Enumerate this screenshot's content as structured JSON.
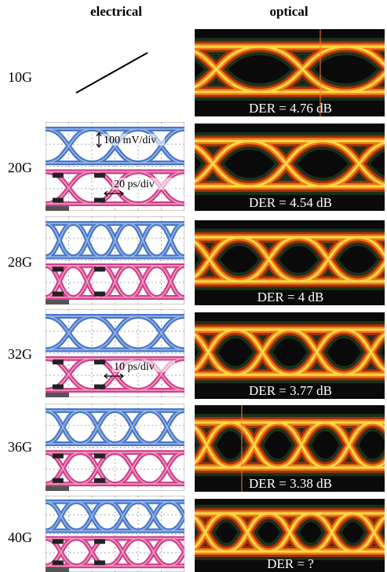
{
  "header": {
    "electrical": "electrical",
    "optical": "optical"
  },
  "rows": [
    {
      "rate": "10G",
      "der": "DER = 4.76 dB"
    },
    {
      "rate": "20G",
      "der": "DER = 4.54 dB",
      "annotations": [
        "100 mV/div",
        "20 ps/div"
      ]
    },
    {
      "rate": "28G",
      "der": "DER = 4 dB"
    },
    {
      "rate": "32G",
      "der": "DER = 3.77 dB",
      "annotations": [
        "10 ps/div"
      ]
    },
    {
      "rate": "36G",
      "der": "DER = 3.38 dB"
    },
    {
      "rate": "40G",
      "der": "DER = ?"
    }
  ]
}
